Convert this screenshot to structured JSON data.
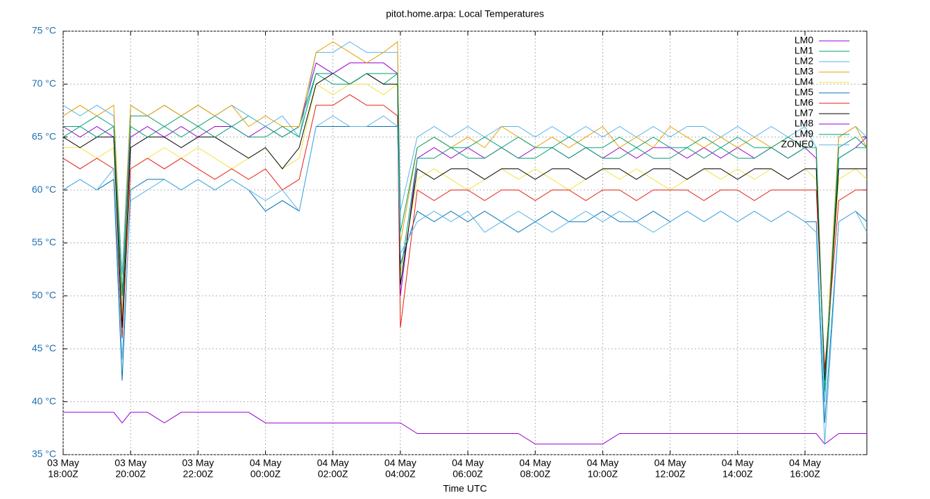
{
  "chart_data": {
    "type": "line",
    "title": "pitot.home.arpa: Local Temperatures",
    "xlabel": "Time UTC",
    "x": [
      "03 May 18:00Z",
      "03 May 18:30Z",
      "03 May 19:00Z",
      "03 May 19:30Z",
      "03 May 19:45Z",
      "03 May 20:00Z",
      "03 May 20:30Z",
      "03 May 21:00Z",
      "03 May 21:30Z",
      "03 May 22:00Z",
      "03 May 22:30Z",
      "03 May 23:00Z",
      "03 May 23:30Z",
      "04 May 00:00Z",
      "04 May 00:30Z",
      "04 May 01:00Z",
      "04 May 01:30Z",
      "04 May 02:00Z",
      "04 May 02:30Z",
      "04 May 03:00Z",
      "04 May 03:30Z",
      "04 May 03:55Z",
      "04 May 04:00Z",
      "04 May 04:30Z",
      "04 May 05:00Z",
      "04 May 05:30Z",
      "04 May 06:00Z",
      "04 May 06:30Z",
      "04 May 07:00Z",
      "04 May 07:30Z",
      "04 May 08:00Z",
      "04 May 08:30Z",
      "04 May 09:00Z",
      "04 May 09:30Z",
      "04 May 10:00Z",
      "04 May 10:30Z",
      "04 May 11:00Z",
      "04 May 11:30Z",
      "04 May 12:00Z",
      "04 May 12:30Z",
      "04 May 13:00Z",
      "04 May 13:30Z",
      "04 May 14:00Z",
      "04 May 14:30Z",
      "04 May 15:00Z",
      "04 May 15:30Z",
      "04 May 16:00Z",
      "04 May 16:20Z",
      "04 May 16:35Z",
      "04 May 17:00Z",
      "04 May 17:30Z",
      "04 May 17:50Z"
    ],
    "xlim": [
      "03 May 18:00Z",
      "04 May 17:50Z"
    ],
    "xticks": [
      {
        "value": "03 May 18:00Z",
        "label": [
          "03 May",
          "18:00Z"
        ]
      },
      {
        "value": "03 May 20:00Z",
        "label": [
          "03 May",
          "20:00Z"
        ]
      },
      {
        "value": "03 May 22:00Z",
        "label": [
          "03 May",
          "22:00Z"
        ]
      },
      {
        "value": "04 May 00:00Z",
        "label": [
          "04 May",
          "00:00Z"
        ]
      },
      {
        "value": "04 May 02:00Z",
        "label": [
          "04 May",
          "02:00Z"
        ]
      },
      {
        "value": "04 May 04:00Z",
        "label": [
          "04 May",
          "04:00Z"
        ]
      },
      {
        "value": "04 May 06:00Z",
        "label": [
          "04 May",
          "06:00Z"
        ]
      },
      {
        "value": "04 May 08:00Z",
        "label": [
          "04 May",
          "08:00Z"
        ]
      },
      {
        "value": "04 May 10:00Z",
        "label": [
          "04 May",
          "10:00Z"
        ]
      },
      {
        "value": "04 May 12:00Z",
        "label": [
          "04 May",
          "12:00Z"
        ]
      },
      {
        "value": "04 May 14:00Z",
        "label": [
          "04 May",
          "14:00Z"
        ]
      },
      {
        "value": "04 May 16:00Z",
        "label": [
          "04 May",
          "16:00Z"
        ]
      }
    ],
    "ylim": [
      35,
      75
    ],
    "yticks": [
      {
        "value": 35,
        "label": "35 °C"
      },
      {
        "value": 40,
        "label": "40 °C"
      },
      {
        "value": 45,
        "label": "45 °C"
      },
      {
        "value": 50,
        "label": "50 °C"
      },
      {
        "value": 55,
        "label": "55 °C"
      },
      {
        "value": 60,
        "label": "60 °C"
      },
      {
        "value": 65,
        "label": "65 °C"
      },
      {
        "value": 70,
        "label": "70 °C"
      },
      {
        "value": 75,
        "label": "75 °C"
      }
    ],
    "grid": true,
    "legend": "upper right",
    "series": [
      {
        "name": "LM0",
        "color": "#9400d3",
        "values": [
          66,
          65,
          66,
          65,
          50,
          65,
          66,
          65,
          66,
          65,
          66,
          66,
          65,
          66,
          65,
          66,
          72,
          71,
          72,
          72,
          72,
          71,
          50,
          63,
          64,
          63,
          64,
          63,
          64,
          63,
          64,
          64,
          63,
          64,
          63,
          64,
          63,
          64,
          64,
          63,
          64,
          63,
          64,
          63,
          64,
          63,
          64,
          63,
          42,
          63,
          64,
          65
        ]
      },
      {
        "name": "LM1",
        "color": "#009e73",
        "values": [
          66,
          66,
          67,
          66,
          48,
          67,
          67,
          66,
          67,
          66,
          67,
          66,
          67,
          66,
          65,
          66,
          71,
          70,
          70,
          71,
          70,
          71,
          52,
          63,
          63,
          64,
          63,
          63,
          64,
          63,
          63,
          64,
          63,
          64,
          63,
          63,
          64,
          63,
          63,
          64,
          63,
          64,
          63,
          63,
          64,
          63,
          64,
          64,
          40,
          63,
          64,
          64
        ]
      },
      {
        "name": "LM2",
        "color": "#56b4e9",
        "values": [
          68,
          67,
          68,
          67,
          52,
          68,
          67,
          68,
          67,
          68,
          67,
          68,
          67,
          66,
          67,
          65,
          73,
          73,
          74,
          73,
          73,
          73,
          58,
          65,
          66,
          65,
          66,
          65,
          66,
          66,
          65,
          66,
          65,
          66,
          65,
          66,
          65,
          66,
          65,
          66,
          66,
          65,
          66,
          65,
          66,
          65,
          66,
          64,
          40,
          65,
          66,
          65
        ]
      },
      {
        "name": "LM3",
        "color": "#e69f00",
        "values": [
          67,
          68,
          67,
          68,
          50,
          68,
          67,
          68,
          67,
          68,
          67,
          68,
          66,
          67,
          66,
          66,
          73,
          74,
          73,
          72,
          73,
          74,
          55,
          64,
          65,
          64,
          65,
          64,
          66,
          65,
          64,
          65,
          64,
          65,
          66,
          64,
          65,
          64,
          66,
          65,
          64,
          65,
          64,
          65,
          64,
          65,
          64,
          64,
          42,
          65,
          66,
          64
        ]
      },
      {
        "name": "LM4",
        "color": "#f0e442",
        "values": [
          64,
          64,
          63,
          64,
          48,
          62,
          63,
          64,
          63,
          64,
          63,
          62,
          63,
          64,
          62,
          63,
          70,
          69,
          70,
          70,
          69,
          70,
          52,
          61,
          62,
          61,
          60,
          61,
          62,
          61,
          62,
          61,
          60,
          61,
          62,
          61,
          62,
          61,
          60,
          61,
          62,
          61,
          62,
          61,
          62,
          61,
          62,
          61,
          43,
          61,
          62,
          61
        ]
      },
      {
        "name": "LM5",
        "color": "#0072b2",
        "values": [
          60,
          61,
          60,
          61,
          42,
          60,
          61,
          61,
          60,
          61,
          60,
          61,
          60,
          58,
          59,
          58,
          66,
          66,
          66,
          66,
          66,
          66,
          53,
          58,
          57,
          58,
          57,
          58,
          57,
          56,
          57,
          58,
          57,
          57,
          58,
          57,
          57,
          58,
          57,
          58,
          57,
          58,
          57,
          58,
          57,
          58,
          57,
          57,
          38,
          57,
          58,
          57
        ]
      },
      {
        "name": "LM6",
        "color": "#e51e10",
        "values": [
          63,
          62,
          63,
          62,
          46,
          62,
          63,
          62,
          63,
          62,
          61,
          62,
          61,
          62,
          60,
          61,
          68,
          68,
          69,
          68,
          68,
          67,
          47,
          60,
          59,
          60,
          60,
          59,
          60,
          60,
          59,
          60,
          60,
          59,
          60,
          60,
          59,
          60,
          60,
          60,
          59,
          60,
          60,
          59,
          60,
          60,
          60,
          60,
          43,
          59,
          60,
          60
        ]
      },
      {
        "name": "LM7",
        "color": "#000000",
        "values": [
          65,
          64,
          65,
          65,
          47,
          64,
          65,
          65,
          64,
          65,
          65,
          64,
          63,
          64,
          62,
          64,
          70,
          71,
          70,
          71,
          70,
          70,
          51,
          62,
          61,
          62,
          62,
          61,
          62,
          62,
          61,
          62,
          62,
          61,
          62,
          62,
          61,
          62,
          62,
          61,
          62,
          62,
          61,
          62,
          62,
          61,
          62,
          62,
          42,
          62,
          62,
          62
        ]
      },
      {
        "name": "LM8",
        "color": "#9400d3",
        "values": [
          39,
          39,
          39,
          39,
          38,
          39,
          39,
          38,
          39,
          39,
          39,
          39,
          39,
          38,
          38,
          38,
          38,
          38,
          38,
          38,
          38,
          38,
          38,
          37,
          37,
          37,
          37,
          37,
          37,
          37,
          36,
          36,
          36,
          36,
          36,
          37,
          37,
          37,
          37,
          37,
          37,
          37,
          37,
          37,
          37,
          37,
          37,
          37,
          36,
          37,
          37,
          37
        ]
      },
      {
        "name": "LM9",
        "color": "#009e73",
        "values": [
          65,
          66,
          65,
          66,
          50,
          66,
          65,
          66,
          65,
          66,
          65,
          66,
          65,
          65,
          66,
          65,
          71,
          71,
          70,
          71,
          71,
          71,
          56,
          64,
          65,
          64,
          64,
          65,
          64,
          65,
          64,
          64,
          65,
          64,
          64,
          65,
          64,
          65,
          64,
          64,
          65,
          64,
          65,
          64,
          64,
          65,
          64,
          64,
          41,
          64,
          65,
          64
        ]
      },
      {
        "name": "ZONE0",
        "color": "#56b4e9",
        "values": [
          60,
          61,
          60,
          62,
          44,
          59,
          60,
          61,
          60,
          61,
          60,
          61,
          60,
          59,
          60,
          58,
          66,
          67,
          66,
          66,
          67,
          66,
          54,
          57,
          58,
          57,
          58,
          56,
          57,
          58,
          57,
          56,
          57,
          58,
          57,
          58,
          57,
          56,
          57,
          58,
          57,
          58,
          57,
          58,
          57,
          58,
          57,
          56,
          36,
          57,
          58,
          56
        ]
      }
    ]
  }
}
